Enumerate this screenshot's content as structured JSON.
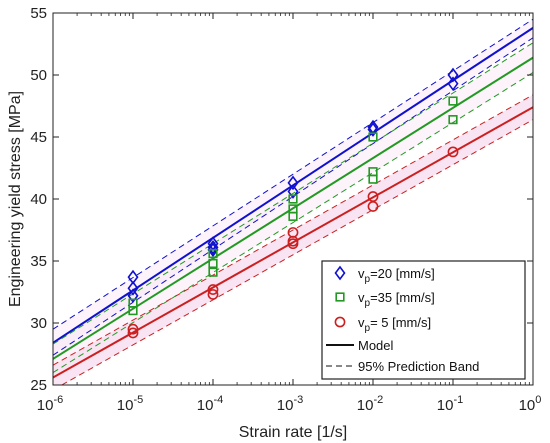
{
  "chart_data": {
    "type": "scatter",
    "xlabel": "Strain rate [1/s]",
    "ylabel": "Engineering yield stress [MPa]",
    "xscale": "log",
    "xlim": [
      1e-06,
      1
    ],
    "ylim": [
      25,
      55
    ],
    "x_ticks": [
      {
        "base": "10",
        "exp": "-6"
      },
      {
        "base": "10",
        "exp": "-5"
      },
      {
        "base": "10",
        "exp": "-4"
      },
      {
        "base": "10",
        "exp": "-3"
      },
      {
        "base": "10",
        "exp": "-2"
      },
      {
        "base": "10",
        "exp": "-1"
      },
      {
        "base": "10",
        "exp": "0"
      }
    ],
    "y_ticks": [
      "25",
      "30",
      "35",
      "40",
      "45",
      "50",
      "55"
    ],
    "grid": false,
    "legend_position": "bottom-right",
    "series": [
      {
        "name": "v",
        "name_sub": "p",
        "name_rest": "=20 [mm/s]",
        "marker": "diamond",
        "color": "#1010d0",
        "points": [
          [
            1e-05,
            33.7
          ],
          [
            1e-05,
            32.8
          ],
          [
            1e-05,
            32.2
          ],
          [
            0.0001,
            36.4
          ],
          [
            0.0001,
            36.1
          ],
          [
            0.0001,
            35.9
          ],
          [
            0.001,
            41.3
          ],
          [
            0.001,
            40.6
          ],
          [
            0.01,
            45.8
          ],
          [
            0.01,
            45.6
          ],
          [
            0.1,
            50.0
          ],
          [
            0.1,
            49.3
          ]
        ],
        "model": {
          "x": [
            1e-06,
            1
          ],
          "y": [
            28.4,
            53.8
          ]
        },
        "band_upper": {
          "x": [
            1e-06,
            1
          ],
          "y": [
            29.5,
            54.5
          ]
        },
        "band_lower": {
          "x": [
            1e-06,
            1
          ],
          "y": [
            27.4,
            53.0
          ]
        }
      },
      {
        "name": "v",
        "name_sub": "p",
        "name_rest": "=35 [mm/s]",
        "marker": "square",
        "color": "#229922",
        "points": [
          [
            1e-05,
            31.6
          ],
          [
            1e-05,
            31.0
          ],
          [
            0.0001,
            35.6
          ],
          [
            0.0001,
            34.8
          ],
          [
            0.0001,
            34.1
          ],
          [
            0.001,
            40.0
          ],
          [
            0.001,
            39.2
          ],
          [
            0.001,
            38.6
          ],
          [
            0.01,
            45.0
          ],
          [
            0.01,
            42.2
          ],
          [
            0.01,
            41.6
          ],
          [
            0.1,
            47.9
          ],
          [
            0.1,
            46.4
          ]
        ],
        "model": {
          "x": [
            1e-06,
            1
          ],
          "y": [
            27.1,
            51.4
          ]
        },
        "band_upper": {
          "x": [
            1e-06,
            1
          ],
          "y": [
            28.3,
            52.6
          ]
        },
        "band_lower": {
          "x": [
            1e-06,
            1
          ],
          "y": [
            26.0,
            50.2
          ]
        }
      },
      {
        "name": "v",
        "name_sub": "p",
        "name_rest": "=  5 [mm/s]",
        "marker": "circle",
        "color": "#cc2020",
        "points": [
          [
            1e-05,
            29.5
          ],
          [
            1e-05,
            29.2
          ],
          [
            0.0001,
            32.7
          ],
          [
            0.0001,
            32.3
          ],
          [
            0.001,
            37.3
          ],
          [
            0.001,
            36.6
          ],
          [
            0.001,
            36.4
          ],
          [
            0.01,
            40.2
          ],
          [
            0.01,
            39.4
          ],
          [
            0.1,
            43.8
          ]
        ],
        "model": {
          "x": [
            1e-06,
            1
          ],
          "y": [
            25.6,
            47.4
          ]
        },
        "band_upper": {
          "x": [
            1e-06,
            1
          ],
          "y": [
            26.6,
            48.4
          ]
        },
        "band_lower": {
          "x": [
            1e-06,
            1
          ],
          "y": [
            24.6,
            46.4
          ]
        }
      }
    ],
    "legend_extra": [
      {
        "label": "Model",
        "style": "solid"
      },
      {
        "label": "95% Prediction Band",
        "style": "dashed"
      }
    ],
    "band_fill_color": "#f7dff0"
  }
}
